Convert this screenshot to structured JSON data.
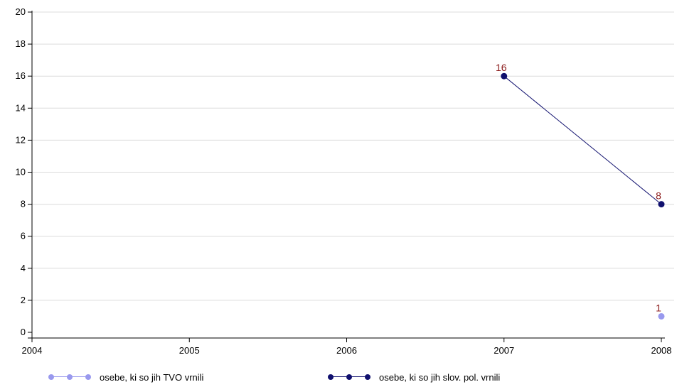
{
  "chart_data": {
    "type": "line",
    "xlim": [
      2004,
      2008
    ],
    "ylim": [
      0,
      20
    ],
    "x_ticks": [
      "2004",
      "2005",
      "2006",
      "2007",
      "2008"
    ],
    "y_ticks": [
      "0",
      "2",
      "4",
      "6",
      "8",
      "10",
      "12",
      "14",
      "16",
      "18",
      "20"
    ],
    "grid": "horizontal",
    "legend_position": "bottom",
    "series": [
      {
        "name": "osebe, ki so jih TVO vrnili",
        "color": "#9999ee",
        "points": [
          {
            "x": 2008,
            "y": 1,
            "label": "1"
          }
        ]
      },
      {
        "name": "osebe, ki so jih slov. pol. vrnili",
        "color": "#10106e",
        "points": [
          {
            "x": 2007,
            "y": 16,
            "label": "16"
          },
          {
            "x": 2008,
            "y": 8,
            "label": "8"
          }
        ]
      }
    ]
  }
}
